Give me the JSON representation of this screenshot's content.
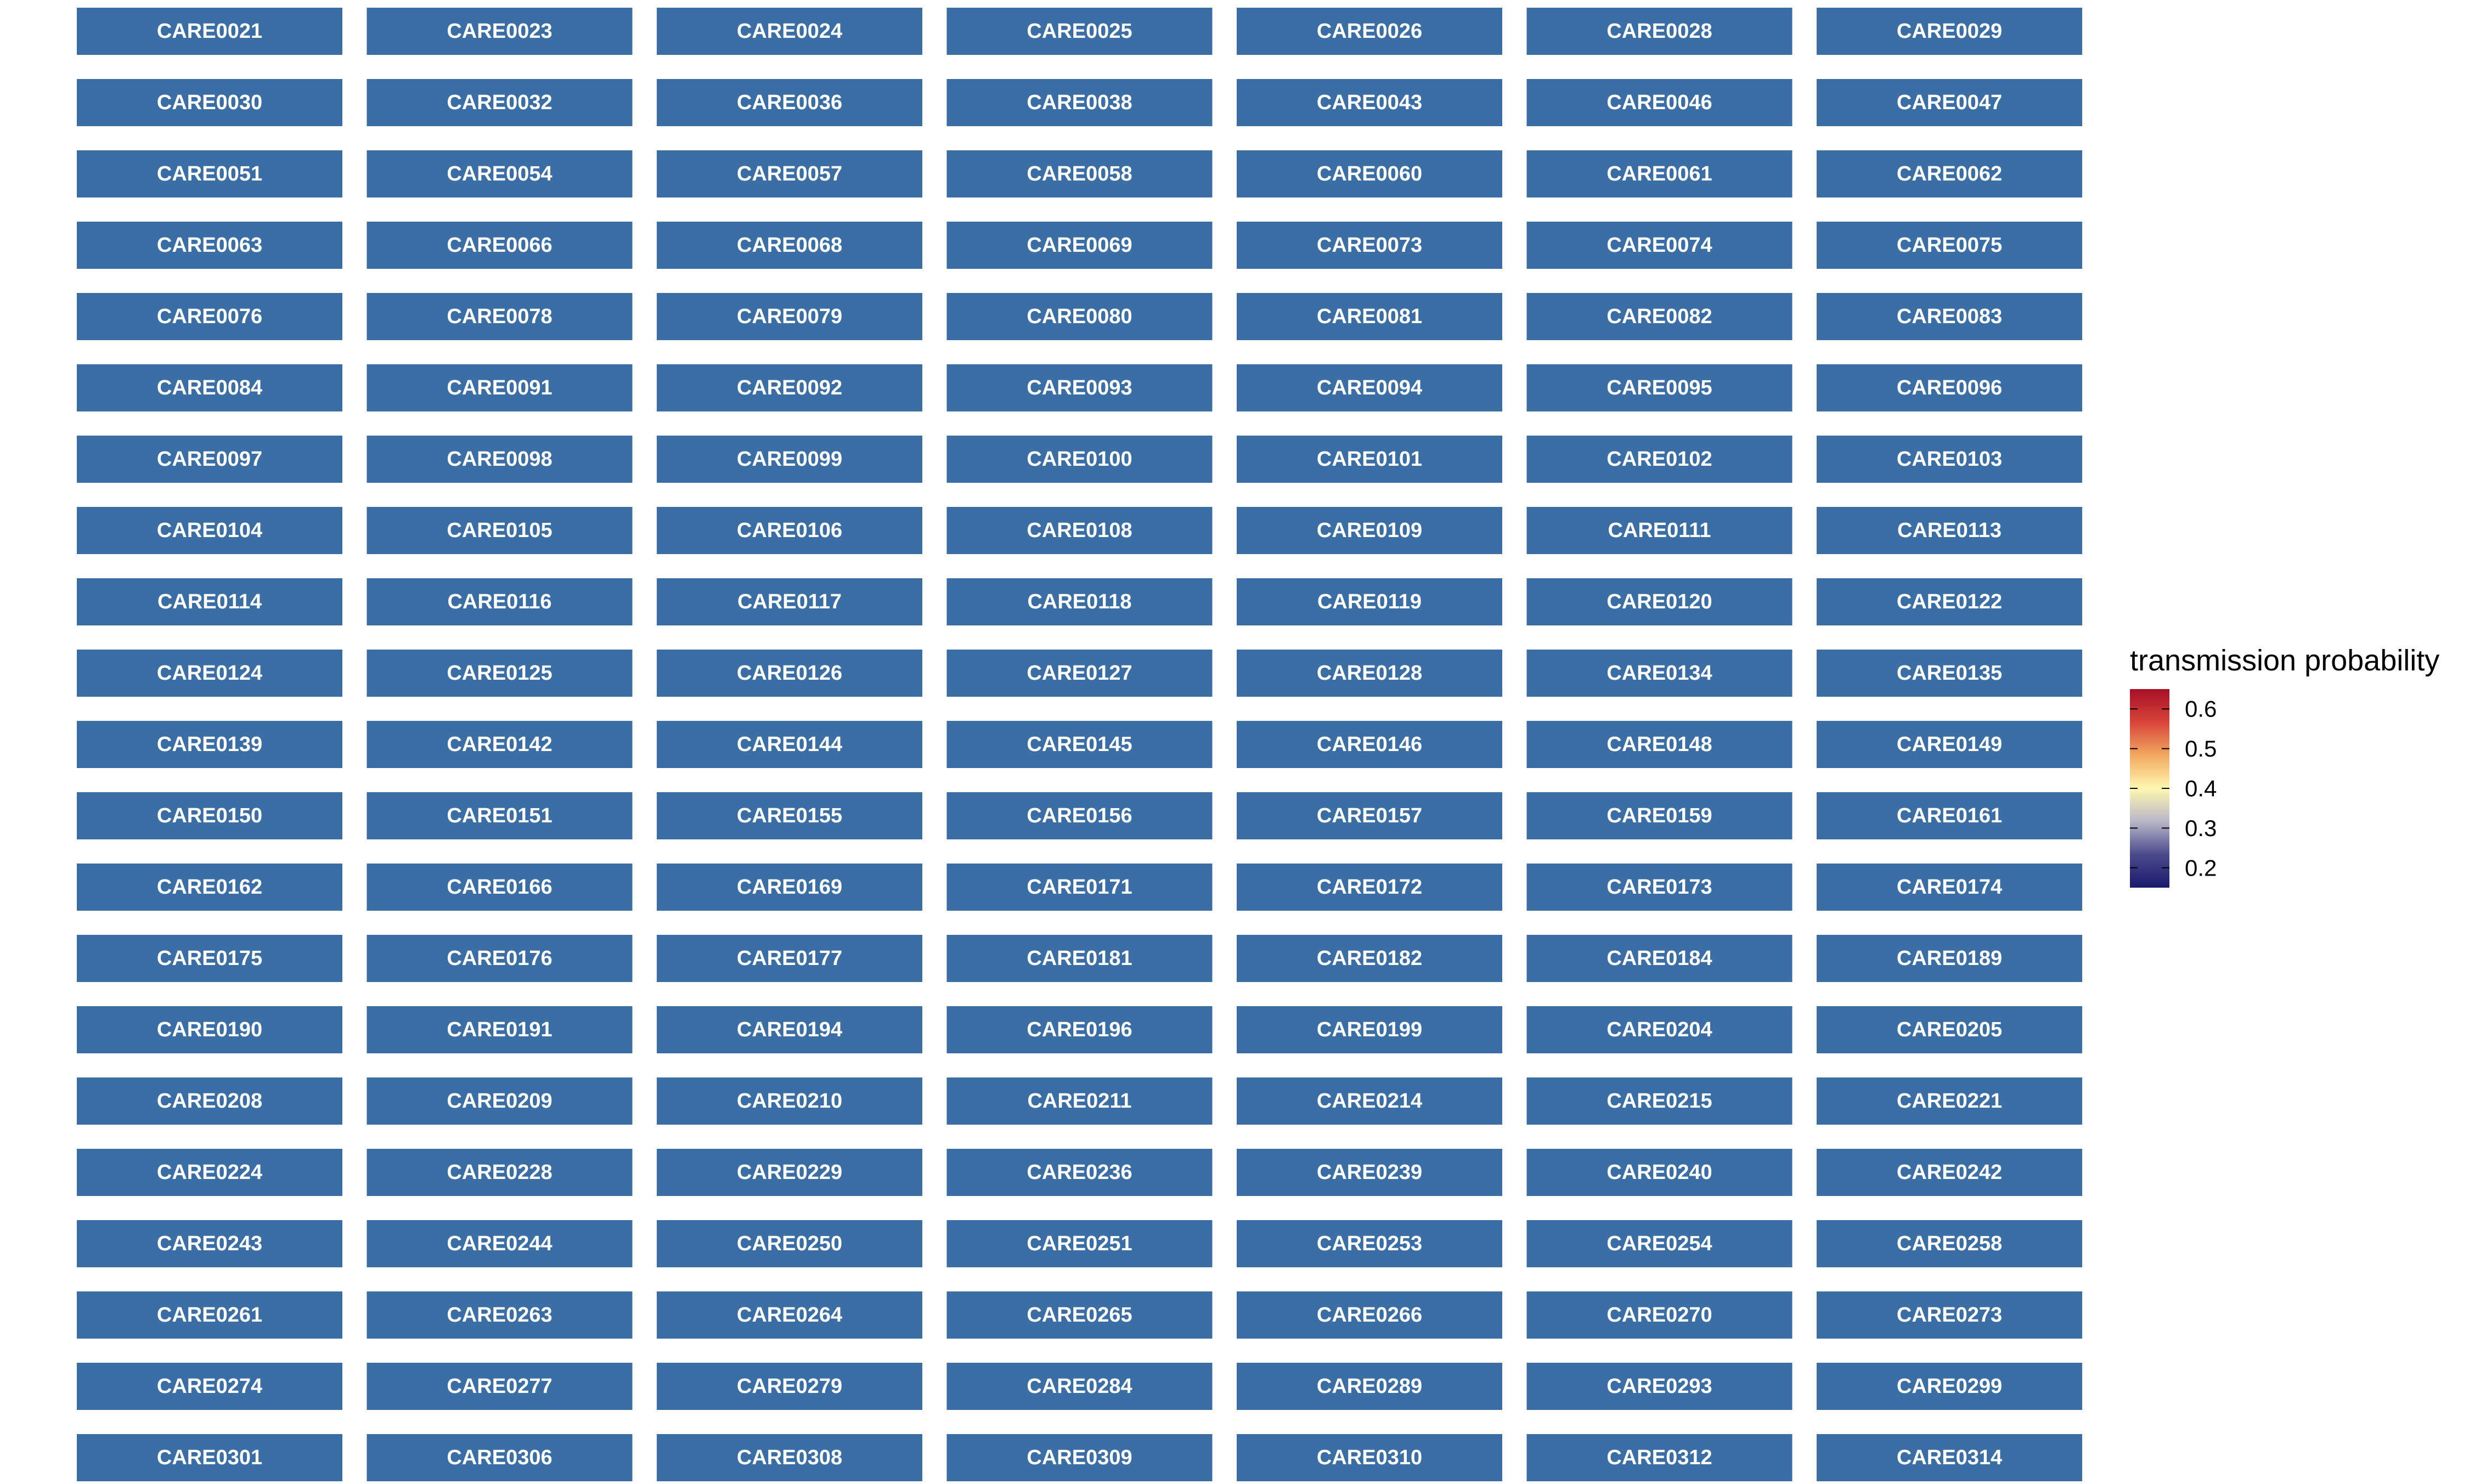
{
  "chart_data": {
    "type": "heatmap",
    "strip_color": "#3A6EA5",
    "panels": [
      "CARE0021",
      "CARE0023",
      "CARE0024",
      "CARE0025",
      "CARE0026",
      "CARE0028",
      "CARE0029",
      "CARE0030",
      "CARE0032",
      "CARE0036",
      "CARE0038",
      "CARE0043",
      "CARE0046",
      "CARE0047",
      "CARE0051",
      "CARE0054",
      "CARE0057",
      "CARE0058",
      "CARE0060",
      "CARE0061",
      "CARE0062",
      "CARE0063",
      "CARE0066",
      "CARE0068",
      "CARE0069",
      "CARE0073",
      "CARE0074",
      "CARE0075",
      "CARE0076",
      "CARE0078",
      "CARE0079",
      "CARE0080",
      "CARE0081",
      "CARE0082",
      "CARE0083",
      "CARE0084",
      "CARE0091",
      "CARE0092",
      "CARE0093",
      "CARE0094",
      "CARE0095",
      "CARE0096",
      "CARE0097",
      "CARE0098",
      "CARE0099",
      "CARE0100",
      "CARE0101",
      "CARE0102",
      "CARE0103",
      "CARE0104",
      "CARE0105",
      "CARE0106",
      "CARE0108",
      "CARE0109",
      "CARE0111",
      "CARE0113",
      "CARE0114",
      "CARE0116",
      "CARE0117",
      "CARE0118",
      "CARE0119",
      "CARE0120",
      "CARE0122",
      "CARE0124",
      "CARE0125",
      "CARE0126",
      "CARE0127",
      "CARE0128",
      "CARE0134",
      "CARE0135",
      "CARE0139",
      "CARE0142",
      "CARE0144",
      "CARE0145",
      "CARE0146",
      "CARE0148",
      "CARE0149",
      "CARE0150",
      "CARE0151",
      "CARE0155",
      "CARE0156",
      "CARE0157",
      "CARE0159",
      "CARE0161",
      "CARE0162",
      "CARE0166",
      "CARE0169",
      "CARE0171",
      "CARE0172",
      "CARE0173",
      "CARE0174",
      "CARE0175",
      "CARE0176",
      "CARE0177",
      "CARE0181",
      "CARE0182",
      "CARE0184",
      "CARE0189",
      "CARE0190",
      "CARE0191",
      "CARE0194",
      "CARE0196",
      "CARE0199",
      "CARE0204",
      "CARE0205",
      "CARE0208",
      "CARE0209",
      "CARE0210",
      "CARE0211",
      "CARE0214",
      "CARE0215",
      "CARE0221",
      "CARE0224",
      "CARE0228",
      "CARE0229",
      "CARE0236",
      "CARE0239",
      "CARE0240",
      "CARE0242",
      "CARE0243",
      "CARE0244",
      "CARE0250",
      "CARE0251",
      "CARE0253",
      "CARE0254",
      "CARE0258",
      "CARE0261",
      "CARE0263",
      "CARE0264",
      "CARE0265",
      "CARE0266",
      "CARE0270",
      "CARE0273",
      "CARE0274",
      "CARE0277",
      "CARE0279",
      "CARE0284",
      "CARE0289",
      "CARE0293",
      "CARE0299",
      "CARE0301",
      "CARE0306",
      "CARE0308",
      "CARE0309",
      "CARE0310",
      "CARE0312",
      "CARE0314"
    ],
    "legend": {
      "title": "transmission probability",
      "range": [
        0.15,
        0.65
      ],
      "ticks": [
        0.6,
        0.5,
        0.4,
        0.3,
        0.2
      ],
      "tick_labels": [
        "0.6",
        "0.5",
        "0.4",
        "0.3",
        "0.2"
      ],
      "colors": [
        "#1A1A6E",
        "#4A4A8C",
        "#B9B6C8",
        "#FFF7B0",
        "#F2A860",
        "#D8443A",
        "#A50F26"
      ]
    }
  }
}
